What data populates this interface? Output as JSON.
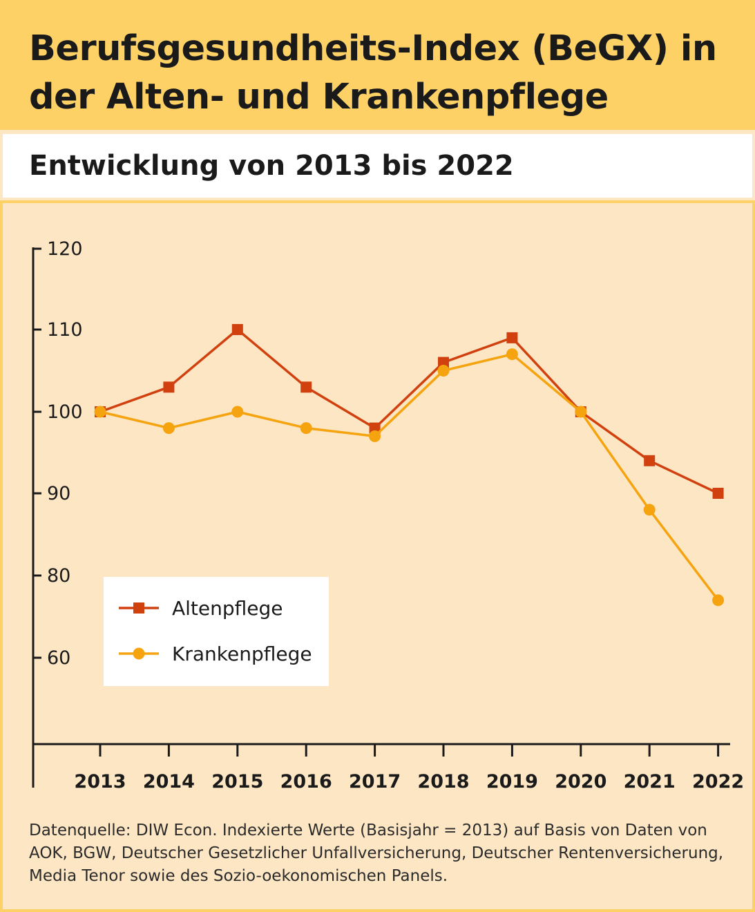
{
  "header": {
    "title": "Berufsgesundheits-Index (BeGX) in der Alten- und Krankenpflege",
    "subtitle": "Entwicklung von 2013 bis 2022"
  },
  "source": "Datenquelle: DIW Econ. Indexierte Werte (Basisjahr = 2013) auf Basis von Daten von AOK, BGW, Deutscher Gesetzlicher Unfallversicherung, Deutscher Rentenversicherung, Media Tenor sowie des Sozio-oekonomischen Panels.",
  "colors": {
    "altenpflege": "#d1400f",
    "krankenpflege": "#f5a30f",
    "header_bg": "#fdd166",
    "plot_bg": "#fde6c4"
  },
  "chart_data": {
    "type": "line",
    "title": "",
    "xlabel": "",
    "ylabel": "",
    "x": [
      "2013",
      "2014",
      "2015",
      "2016",
      "2017",
      "2018",
      "2019",
      "2020",
      "2021",
      "2022"
    ],
    "y_ticks": [
      "120",
      "110",
      "100",
      "90",
      "80",
      "60"
    ],
    "ylim": [
      60,
      120
    ],
    "grid": false,
    "legend_position": "bottom-left",
    "series": [
      {
        "name": "Altenpflege",
        "marker": "square",
        "values": [
          100,
          103,
          110,
          103,
          98,
          106,
          109,
          100,
          94,
          90
        ]
      },
      {
        "name": "Krankenpflege",
        "marker": "circle",
        "values": [
          100,
          98,
          100,
          98,
          97,
          105,
          107,
          100,
          88,
          77
        ]
      }
    ]
  }
}
